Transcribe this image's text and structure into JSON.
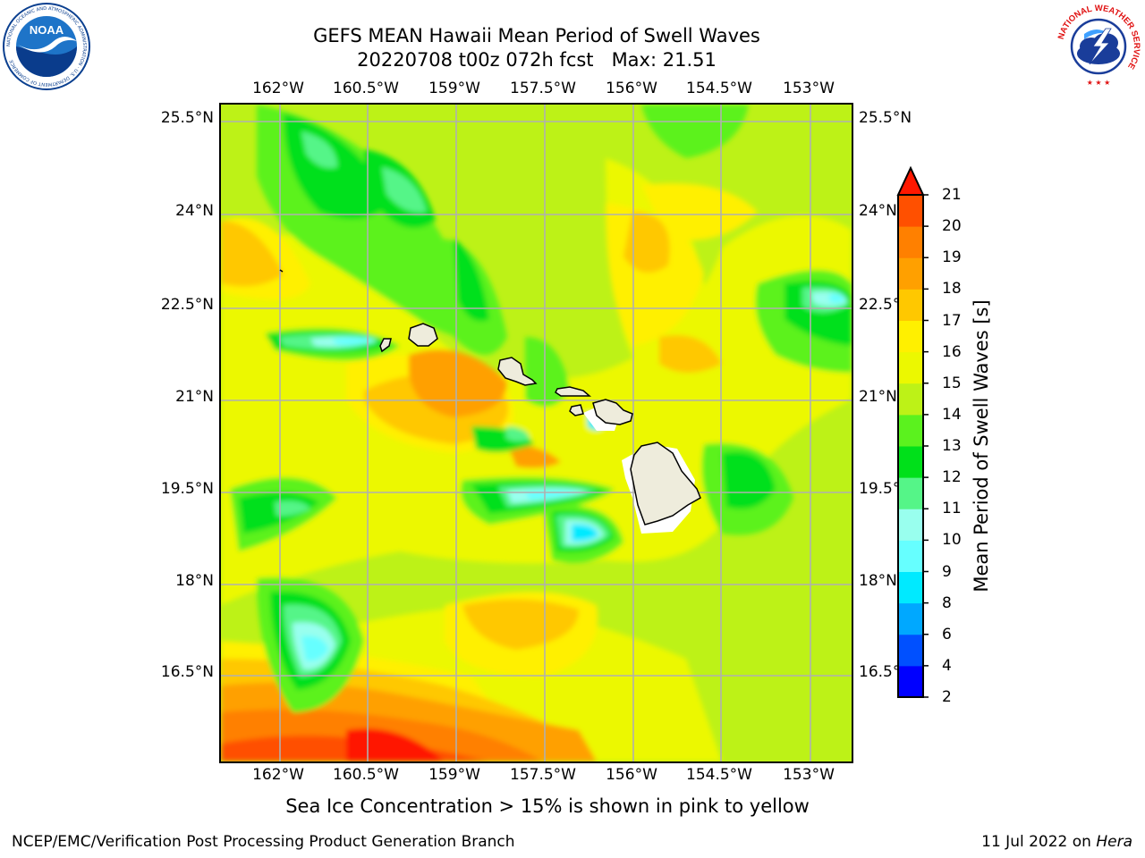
{
  "header": {
    "title_line1": "GEFS MEAN Hawaii Mean Period of Swell Waves",
    "title_line2": "20220708 t00z 072h fcst   Max: 21.51"
  },
  "logos": {
    "noaa": {
      "text": "NOAA",
      "ring_text": "NATIONAL OCEANIC AND ATMOSPHERIC ADMINISTRATION · U.S. DEPARTMENT OF COMMERCE"
    },
    "nws": {
      "ring_text": "NATIONAL WEATHER SERVICE"
    }
  },
  "map": {
    "lon_labels": [
      "162°W",
      "160.5°W",
      "159°W",
      "157.5°W",
      "156°W",
      "154.5°W",
      "153°W"
    ],
    "lat_labels": [
      "25.5°N",
      "24°N",
      "22.5°N",
      "21°N",
      "19.5°N",
      "18°N",
      "16.5°N"
    ],
    "gridlines": true
  },
  "colorbar": {
    "label": "Mean Period of Swell Waves [s]",
    "ticks": [
      "21",
      "20",
      "19",
      "18",
      "17",
      "16",
      "15",
      "14",
      "13",
      "12",
      "11",
      "10",
      "9",
      "8",
      "6",
      "4",
      "2"
    ],
    "colors": {
      "2-4": "#0000ff",
      "4-6": "#0050ff",
      "6-8": "#00a8ff",
      "8-9": "#00eaff",
      "9-10": "#66ffff",
      "10-11": "#99ffee",
      "11-12": "#55f588",
      "12-13": "#00e01a",
      "13-14": "#5bf21e",
      "14-15": "#bdf217",
      "15-16": "#ecf800",
      "16-17": "#fff000",
      "17-18": "#ffc800",
      "18-19": "#ffa000",
      "19-20": "#ff8000",
      "20-21": "#ff5000",
      ">21": "#ff1800"
    }
  },
  "footer": {
    "subtitle": "Sea Ice Concentration > 15% is shown in pink to yellow",
    "left": "NCEP/EMC/Verification Post Processing Product Generation Branch",
    "right_date": "11 Jul 2022 on",
    "right_machine": "Hera"
  }
}
